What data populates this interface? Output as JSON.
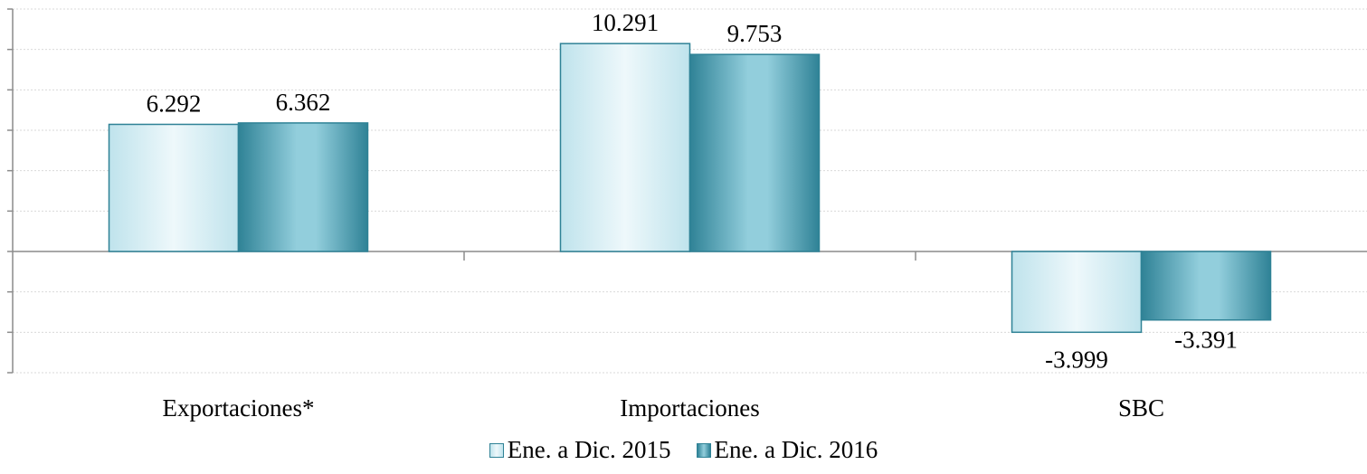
{
  "chart_data": {
    "type": "bar",
    "categories": [
      "Exportaciones*",
      "Importaciones",
      "SBC"
    ],
    "series": [
      {
        "name": "Ene. a Dic. 2015",
        "values": [
          6292,
          10291,
          -3999
        ],
        "labels": [
          "6.292",
          "10.291",
          "-3.999"
        ]
      },
      {
        "name": "Ene. a Dic. 2016",
        "values": [
          6362,
          9753,
          -3391
        ],
        "labels": [
          "6.362",
          "9.753",
          "-3.391"
        ]
      }
    ],
    "ylim": [
      -6000,
      12000
    ],
    "y_tick_step": 2000,
    "grid": true,
    "legend_position": "bottom",
    "colors": {
      "series_2015_light": "#eef8fb",
      "series_2015_mid": "#bfe3ec",
      "series_2016_dark": "#2f8296",
      "series_2016_mid": "#92cedc",
      "border": "#2f8296",
      "grid": "#d9d9d9",
      "axis": "#8c8c8c"
    }
  }
}
